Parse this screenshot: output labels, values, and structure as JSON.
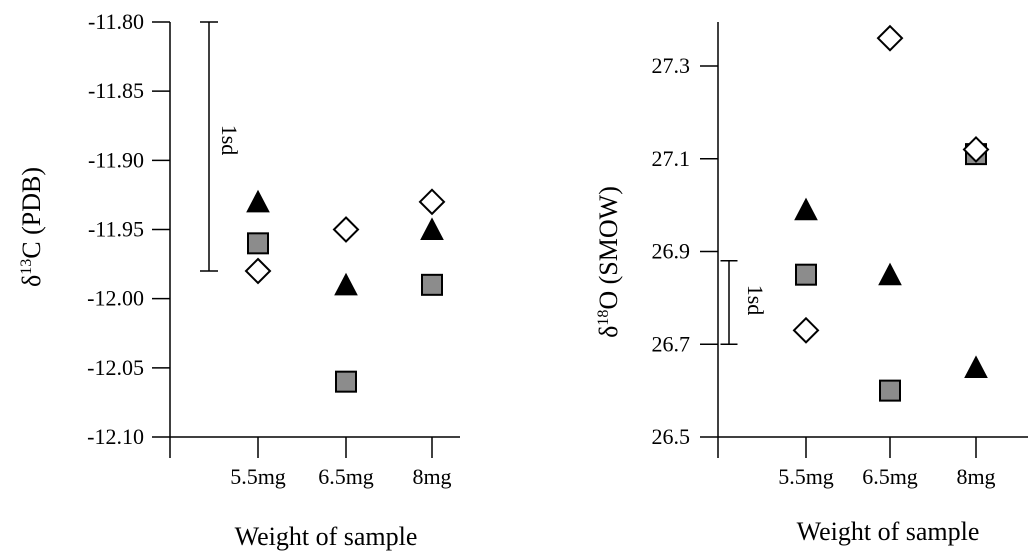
{
  "chart_data": [
    {
      "type": "scatter",
      "ylabel": "δ13C (PDB)",
      "ylabel_main": "δ",
      "ylabel_sup": "13",
      "ylabel_rest": "C (PDB)",
      "xlabel": "Weight of sample",
      "categories": [
        "5.5mg",
        "6.5mg",
        "8mg"
      ],
      "yticks": [
        "-11.80",
        "-11.85",
        "-11.90",
        "-11.95",
        "-12.00",
        "-12.05",
        "-12.10"
      ],
      "ylim": [
        -12.1,
        -11.8
      ],
      "sd_label": "1sd",
      "sd_range": [
        -11.8,
        -11.98
      ],
      "series": [
        {
          "marker": "triangle",
          "values": [
            -11.93,
            -11.99,
            -11.95
          ]
        },
        {
          "marker": "square",
          "values": [
            -11.96,
            -12.06,
            -11.99
          ]
        },
        {
          "marker": "diamond",
          "values": [
            -11.98,
            -11.95,
            -11.93
          ]
        }
      ]
    },
    {
      "type": "scatter",
      "ylabel": "δ18O (SMOW)",
      "ylabel_main": "δ",
      "ylabel_sup": "18",
      "ylabel_rest": "O (SMOW)",
      "xlabel": "Weight of sample",
      "categories": [
        "5.5mg",
        "6.5mg",
        "8mg"
      ],
      "yticks": [
        "26.5",
        "26.7",
        "26.9",
        "27.1",
        "27.3"
      ],
      "ylim": [
        26.5,
        27.3
      ],
      "sd_label": "1sd",
      "sd_range": [
        26.7,
        26.88
      ],
      "series": [
        {
          "marker": "triangle",
          "values": [
            26.99,
            26.85,
            26.65
          ]
        },
        {
          "marker": "square",
          "values": [
            26.85,
            26.6,
            27.11
          ]
        },
        {
          "marker": "diamond",
          "values": [
            26.73,
            27.36,
            27.12
          ]
        }
      ]
    }
  ]
}
